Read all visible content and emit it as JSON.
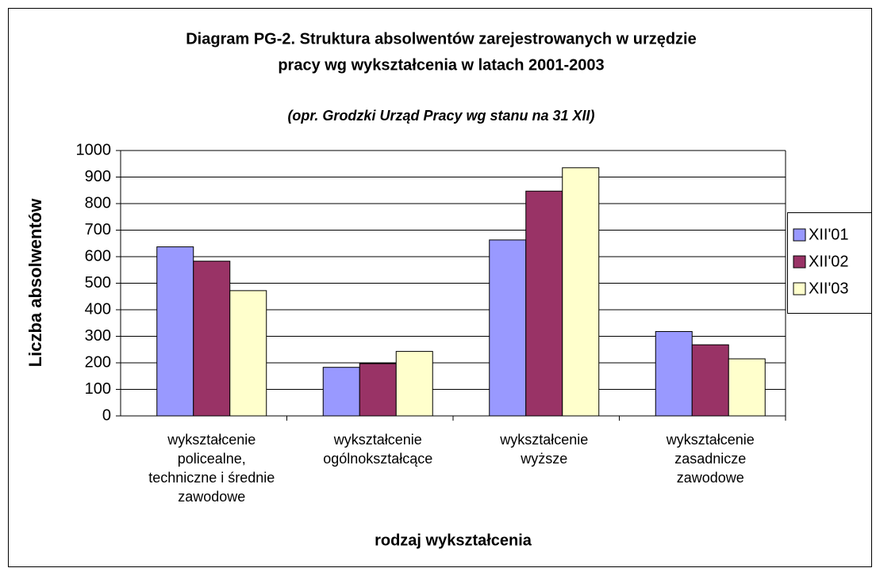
{
  "chart_data": {
    "type": "bar",
    "title": [
      "Diagram PG-2. Struktura absolwentów zarejestrowanych w urzędzie",
      "pracy wg wykształcenia w latach 2001-2003"
    ],
    "subtitle": "(opr. Grodzki Urząd Pracy wg stanu na 31 XII)",
    "x_label": "rodzaj wykształcenia",
    "y_label": "Liczba absolwentów",
    "categories": [
      [
        "wykształcenie",
        "policealne,",
        "techniczne i średnie",
        "zawodowe"
      ],
      [
        "wykształcenie",
        "ogólnokształcące"
      ],
      [
        "wykształcenie",
        "wyższe"
      ],
      [
        "wykształcenie",
        "zasadnicze",
        "zawodowe"
      ]
    ],
    "series": [
      {
        "name": "XII'01",
        "color": "#9999ff",
        "values": [
          637,
          183,
          663,
          318
        ]
      },
      {
        "name": "XII'02",
        "color": "#993366",
        "values": [
          583,
          197,
          847,
          268
        ]
      },
      {
        "name": "XII'03",
        "color": "#ffffcc",
        "values": [
          472,
          243,
          935,
          215
        ]
      }
    ],
    "ylim": [
      0,
      1000
    ],
    "yticks": [
      0,
      100,
      200,
      300,
      400,
      500,
      600,
      700,
      800,
      900,
      1000
    ],
    "grid": true,
    "legend": "right"
  }
}
